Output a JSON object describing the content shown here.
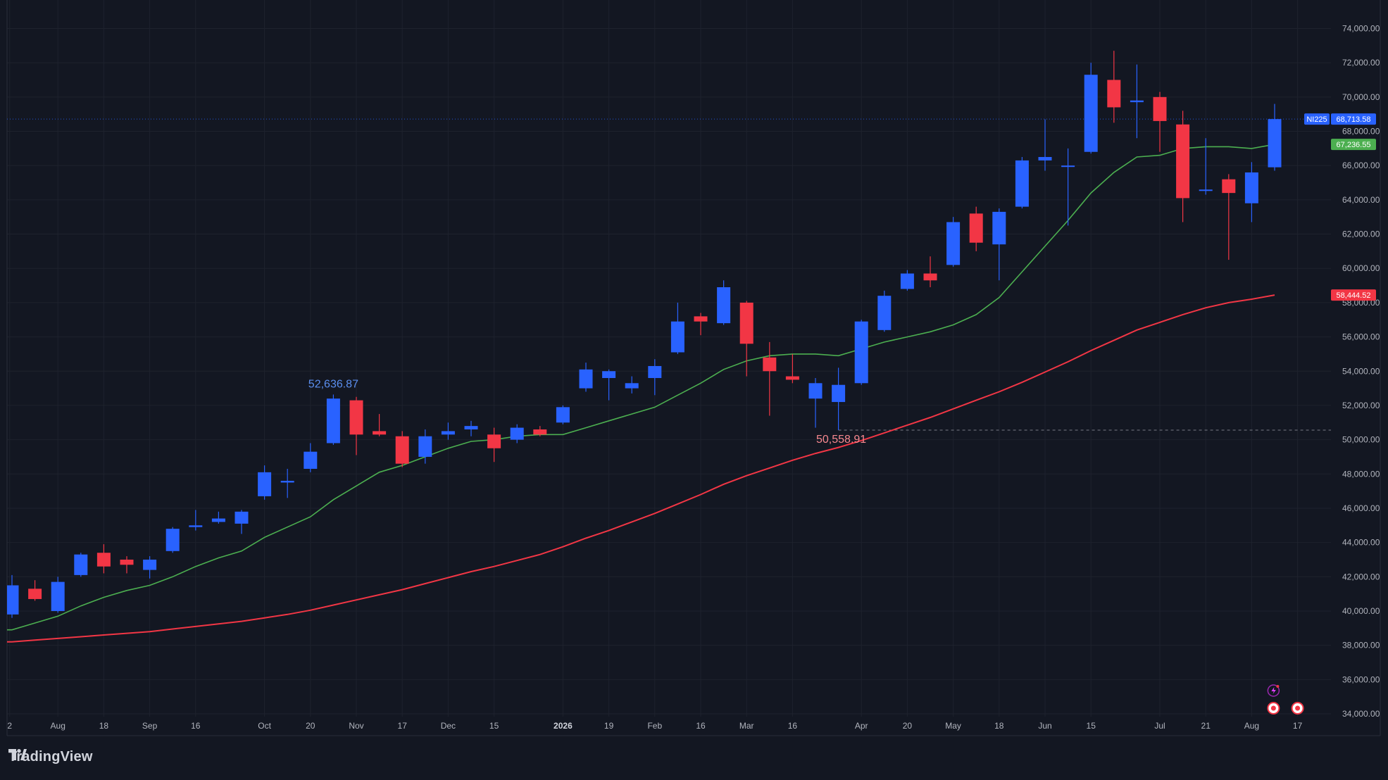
{
  "brand": {
    "name": "TradingView",
    "icon": "tradingview-logo-icon"
  },
  "colors": {
    "background": "#131722",
    "grid": "#1e222d",
    "up": "#2962ff",
    "down": "#f23645",
    "ema_fast": "#4caf50",
    "ema_slow": "#f23645",
    "axis_text": "#b2b5be"
  },
  "chart_data": {
    "type": "candlestick",
    "symbol": "NI225",
    "interval": "weekly",
    "ylim": [
      33500,
      75000
    ],
    "y_ticks": [
      "34,000.00",
      "36,000.00",
      "38,000.00",
      "40,000.00",
      "42,000.00",
      "44,000.00",
      "46,000.00",
      "48,000.00",
      "50,000.00",
      "52,000.00",
      "54,000.00",
      "56,000.00",
      "58,000.00",
      "60,000.00",
      "62,000.00",
      "64,000.00",
      "66,000.00",
      "68,000.00",
      "70,000.00",
      "72,000.00",
      "74,000.00"
    ],
    "y_tick_values": [
      34000,
      36000,
      38000,
      40000,
      42000,
      44000,
      46000,
      48000,
      50000,
      52000,
      54000,
      56000,
      58000,
      60000,
      62000,
      64000,
      66000,
      68000,
      70000,
      72000,
      74000
    ],
    "x_labels": [
      {
        "label": "2",
        "index": -0.1
      },
      {
        "label": "Aug",
        "index": 2
      },
      {
        "label": "18",
        "index": 4
      },
      {
        "label": "Sep",
        "index": 6
      },
      {
        "label": "16",
        "index": 8
      },
      {
        "label": "Oct",
        "index": 11
      },
      {
        "label": "20",
        "index": 13
      },
      {
        "label": "Nov",
        "index": 15
      },
      {
        "label": "17",
        "index": 17
      },
      {
        "label": "Dec",
        "index": 19
      },
      {
        "label": "15",
        "index": 21
      },
      {
        "label": "2026",
        "index": 24,
        "bold": true
      },
      {
        "label": "19",
        "index": 26
      },
      {
        "label": "Feb",
        "index": 28
      },
      {
        "label": "16",
        "index": 30
      },
      {
        "label": "Mar",
        "index": 32
      },
      {
        "label": "16",
        "index": 34
      },
      {
        "label": "Apr",
        "index": 37
      },
      {
        "label": "20",
        "index": 39
      },
      {
        "label": "May",
        "index": 41
      },
      {
        "label": "18",
        "index": 43
      },
      {
        "label": "Jun",
        "index": 45
      },
      {
        "label": "15",
        "index": 47
      },
      {
        "label": "Jul",
        "index": 50
      },
      {
        "label": "21",
        "index": 52
      },
      {
        "label": "Aug",
        "index": 54
      },
      {
        "label": "17",
        "index": 56
      }
    ],
    "candles": [
      {
        "o": 39800,
        "h": 42100,
        "l": 39600,
        "c": 41500
      },
      {
        "o": 41300,
        "h": 41800,
        "l": 40600,
        "c": 40700
      },
      {
        "o": 40000,
        "h": 42000,
        "l": 39900,
        "c": 41700
      },
      {
        "o": 42100,
        "h": 43400,
        "l": 42000,
        "c": 43300
      },
      {
        "o": 43400,
        "h": 43900,
        "l": 42200,
        "c": 42600
      },
      {
        "o": 43000,
        "h": 43200,
        "l": 42200,
        "c": 42700
      },
      {
        "o": 42400,
        "h": 43200,
        "l": 41900,
        "c": 43000
      },
      {
        "o": 43500,
        "h": 44900,
        "l": 43400,
        "c": 44800
      },
      {
        "o": 44900,
        "h": 45900,
        "l": 44700,
        "c": 45000
      },
      {
        "o": 45200,
        "h": 45800,
        "l": 45100,
        "c": 45400
      },
      {
        "o": 45100,
        "h": 45900,
        "l": 44500,
        "c": 45800
      },
      {
        "o": 46700,
        "h": 48500,
        "l": 46500,
        "c": 48100
      },
      {
        "o": 47500,
        "h": 48300,
        "l": 46600,
        "c": 47600
      },
      {
        "o": 48300,
        "h": 49800,
        "l": 48100,
        "c": 49300
      },
      {
        "o": 49800,
        "h": 52636.87,
        "l": 49700,
        "c": 52400
      },
      {
        "o": 52300,
        "h": 52500,
        "l": 49100,
        "c": 50300
      },
      {
        "o": 50500,
        "h": 51500,
        "l": 50200,
        "c": 50300
      },
      {
        "o": 50200,
        "h": 50500,
        "l": 48400,
        "c": 48600
      },
      {
        "o": 49000,
        "h": 50600,
        "l": 48600,
        "c": 50200
      },
      {
        "o": 50300,
        "h": 51000,
        "l": 50000,
        "c": 50500
      },
      {
        "o": 50600,
        "h": 51100,
        "l": 50200,
        "c": 50800
      },
      {
        "o": 50300,
        "h": 50700,
        "l": 48700,
        "c": 49500
      },
      {
        "o": 50000,
        "h": 50900,
        "l": 49800,
        "c": 50700
      },
      {
        "o": 50600,
        "h": 50800,
        "l": 50200,
        "c": 50300
      },
      {
        "o": 51000,
        "h": 52000,
        "l": 50900,
        "c": 51900
      },
      {
        "o": 53000,
        "h": 54500,
        "l": 52800,
        "c": 54100
      },
      {
        "o": 53600,
        "h": 54100,
        "l": 52300,
        "c": 54000
      },
      {
        "o": 53000,
        "h": 53700,
        "l": 52700,
        "c": 53300
      },
      {
        "o": 53600,
        "h": 54700,
        "l": 52600,
        "c": 54300
      },
      {
        "o": 55100,
        "h": 58000,
        "l": 55000,
        "c": 56900
      },
      {
        "o": 57200,
        "h": 57400,
        "l": 56100,
        "c": 56900
      },
      {
        "o": 56800,
        "h": 59300,
        "l": 56700,
        "c": 58900
      },
      {
        "o": 58000,
        "h": 58100,
        "l": 53700,
        "c": 55600
      },
      {
        "o": 54800,
        "h": 55700,
        "l": 51400,
        "c": 54000
      },
      {
        "o": 53700,
        "h": 55000,
        "l": 53300,
        "c": 53500
      },
      {
        "o": 52400,
        "h": 53600,
        "l": 50700,
        "c": 53300
      },
      {
        "o": 52200,
        "h": 54200,
        "l": 50558.91,
        "c": 53200
      },
      {
        "o": 53300,
        "h": 57000,
        "l": 53200,
        "c": 56900
      },
      {
        "o": 56400,
        "h": 58700,
        "l": 56300,
        "c": 58400
      },
      {
        "o": 58800,
        "h": 59900,
        "l": 58700,
        "c": 59700
      },
      {
        "o": 59700,
        "h": 60700,
        "l": 58900,
        "c": 59300
      },
      {
        "o": 60200,
        "h": 63000,
        "l": 60100,
        "c": 62700
      },
      {
        "o": 63200,
        "h": 63600,
        "l": 61000,
        "c": 61500
      },
      {
        "o": 61400,
        "h": 63500,
        "l": 59300,
        "c": 63300
      },
      {
        "o": 63600,
        "h": 66500,
        "l": 63500,
        "c": 66300
      },
      {
        "o": 66300,
        "h": 68700,
        "l": 65700,
        "c": 66500
      },
      {
        "o": 66000,
        "h": 67000,
        "l": 62500,
        "c": 66000
      },
      {
        "o": 66800,
        "h": 72000,
        "l": 66700,
        "c": 71300
      },
      {
        "o": 71000,
        "h": 72700,
        "l": 68500,
        "c": 69400
      },
      {
        "o": 69700,
        "h": 71900,
        "l": 67600,
        "c": 69800
      },
      {
        "o": 70000,
        "h": 70300,
        "l": 66800,
        "c": 68600
      },
      {
        "o": 68400,
        "h": 69200,
        "l": 62700,
        "c": 64100
      },
      {
        "o": 64600,
        "h": 67600,
        "l": 64300,
        "c": 64600
      },
      {
        "o": 65200,
        "h": 65500,
        "l": 60500,
        "c": 64400
      },
      {
        "o": 63800,
        "h": 66200,
        "l": 62700,
        "c": 65600
      },
      {
        "o": 65900,
        "h": 69600,
        "l": 65700,
        "c": 68713.58
      }
    ],
    "series": [
      {
        "name": "EMA fast",
        "color": "#4caf50",
        "last": 67236.55,
        "values": [
          38900,
          39300,
          39700,
          40300,
          40800,
          41200,
          41500,
          42000,
          42600,
          43100,
          43500,
          44300,
          44900,
          45500,
          46500,
          47300,
          48100,
          48500,
          49000,
          49500,
          49900,
          50000,
          50200,
          50300,
          50300,
          50700,
          51100,
          51500,
          51900,
          52600,
          53300,
          54100,
          54600,
          54900,
          55000,
          55000,
          54900,
          55300,
          55700,
          56000,
          56300,
          56700,
          57300,
          58300,
          59800,
          61300,
          62800,
          64400,
          65600,
          66500,
          66600,
          67000,
          67100,
          67100,
          67000,
          67236.55
        ]
      },
      {
        "name": "EMA slow",
        "color": "#f23645",
        "last": 58444.52,
        "values": [
          38200,
          38300,
          38400,
          38500,
          38600,
          38700,
          38800,
          38950,
          39100,
          39250,
          39400,
          39600,
          39800,
          40050,
          40350,
          40650,
          40950,
          41250,
          41600,
          41950,
          42300,
          42600,
          42950,
          43300,
          43750,
          44250,
          44700,
          45200,
          45700,
          46250,
          46800,
          47400,
          47900,
          48350,
          48800,
          49200,
          49550,
          49950,
          50400,
          50850,
          51300,
          51800,
          52300,
          52800,
          53350,
          53950,
          54550,
          55200,
          55800,
          56400,
          56850,
          57300,
          57700,
          58000,
          58200,
          58444.52
        ]
      }
    ],
    "price_badge": {
      "label": "NI225",
      "value": "68,713.58",
      "color": "#2962ff"
    },
    "ema_fast_badge": {
      "value": "67,236.55",
      "color": "#4caf50"
    },
    "ema_slow_badge": {
      "value": "58,444.52",
      "color": "#f23645"
    },
    "annotations": [
      {
        "text": "52,636.87",
        "index": 14,
        "value": 52636.87,
        "kind": "high",
        "color": "#5b8ff0"
      },
      {
        "text": "50,558.91",
        "index": 36,
        "value": 50558.91,
        "kind": "low",
        "color": "#f7888f"
      }
    ],
    "low_line_value": 50558.91,
    "grid": true,
    "legend": "none"
  }
}
